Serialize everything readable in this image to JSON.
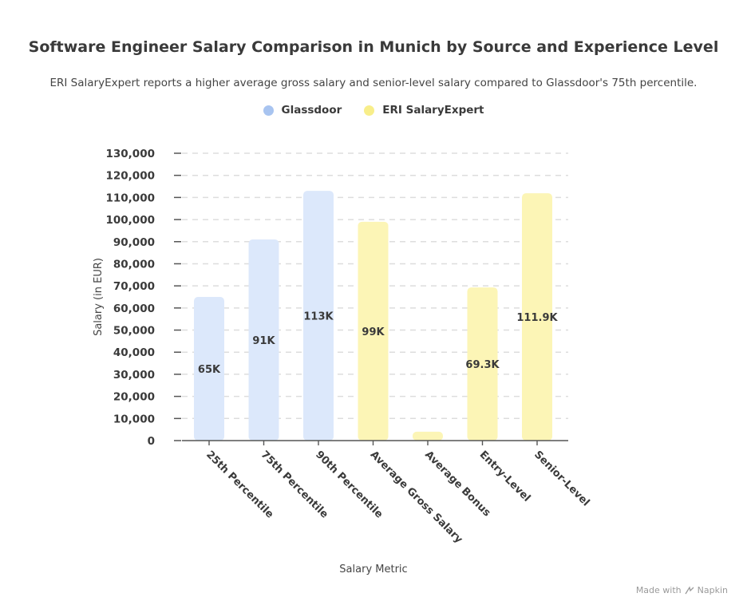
{
  "title": "Software Engineer Salary Comparison in Munich by Source and Experience Level",
  "subtitle": "ERI SalaryExpert reports a higher average gross salary and senior-level salary compared to Glassdoor's 75th percentile.",
  "legend": [
    {
      "name": "Glassdoor",
      "color": "#a8c4f0"
    },
    {
      "name": "ERI SalaryExpert",
      "color": "#f8ee8a"
    }
  ],
  "footer": {
    "made_with": "Made with",
    "brand": "Napkin"
  },
  "chart_data": {
    "type": "bar",
    "xlabel": "Salary Metric",
    "ylabel": "Salary (in EUR)",
    "ylim": [
      0,
      130000
    ],
    "yticks": [
      {
        "value": 0,
        "label": "0"
      },
      {
        "value": 10000,
        "label": "10,000"
      },
      {
        "value": 20000,
        "label": "20,000"
      },
      {
        "value": 30000,
        "label": "30,000"
      },
      {
        "value": 40000,
        "label": "40,000"
      },
      {
        "value": 50000,
        "label": "50,000"
      },
      {
        "value": 60000,
        "label": "60,000"
      },
      {
        "value": 70000,
        "label": "70,000"
      },
      {
        "value": 80000,
        "label": "80,000"
      },
      {
        "value": 90000,
        "label": "90,000"
      },
      {
        "value": 100000,
        "label": "100,000"
      },
      {
        "value": 110000,
        "label": "110,000"
      },
      {
        "value": 120000,
        "label": "120,000"
      },
      {
        "value": 130000,
        "label": "130,000"
      }
    ],
    "grid": true,
    "bars": [
      {
        "category": "25th Percentile",
        "value": 65000,
        "label": "65K",
        "source": "Glassdoor",
        "color": "#dce8fb"
      },
      {
        "category": "75th Percentile",
        "value": 91000,
        "label": "91K",
        "source": "Glassdoor",
        "color": "#dce8fb"
      },
      {
        "category": "90th Percentile",
        "value": 113000,
        "label": "113K",
        "source": "Glassdoor",
        "color": "#dce8fb"
      },
      {
        "category": "Average Gross Salary",
        "value": 99000,
        "label": "99K",
        "source": "ERI SalaryExpert",
        "color": "#fcf5b6"
      },
      {
        "category": "Average Bonus",
        "value": 4000,
        "label": "",
        "source": "ERI SalaryExpert",
        "color": "#fcf5b6"
      },
      {
        "category": "Entry-Level",
        "value": 69300,
        "label": "69.3K",
        "source": "ERI SalaryExpert",
        "color": "#fcf5b6"
      },
      {
        "category": "Senior-Level",
        "value": 111900,
        "label": "111.9K",
        "source": "ERI SalaryExpert",
        "color": "#fcf5b6"
      }
    ]
  }
}
